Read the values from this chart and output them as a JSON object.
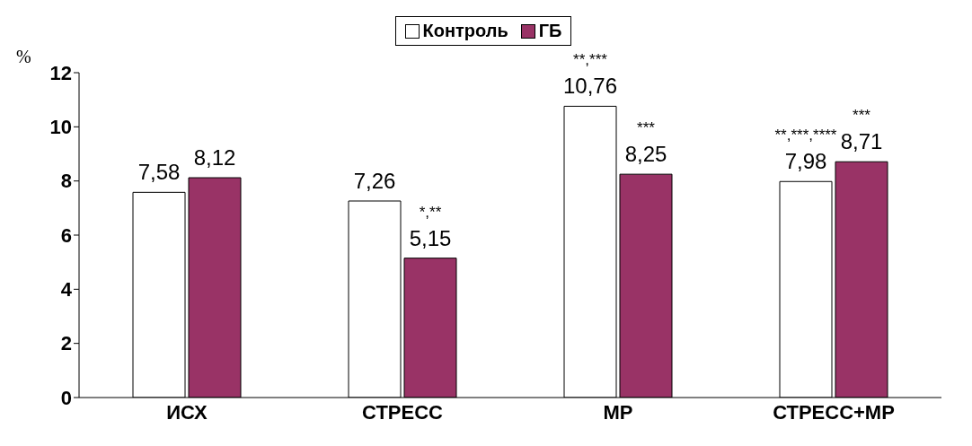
{
  "chart_data": {
    "type": "bar",
    "ylabel": "%",
    "categories": [
      "ИСХ",
      "СТРЕСС",
      "МР",
      "СТРЕСС+МР"
    ],
    "series": [
      {
        "name": "Контроль",
        "color": "#ffffff",
        "values": [
          7.58,
          7.26,
          10.76,
          7.98
        ],
        "value_labels": [
          "7,58",
          "7,26",
          "10,76",
          "7,98"
        ]
      },
      {
        "name": "ГБ",
        "color": "#993366",
        "values": [
          8.12,
          5.15,
          8.25,
          8.71
        ],
        "value_labels": [
          "8,12",
          "5,15",
          "8,25",
          "8,71"
        ]
      }
    ],
    "ylim": [
      0,
      12
    ],
    "yticks": [
      0,
      2,
      4,
      6,
      8,
      10,
      12
    ],
    "grid": false,
    "legend": "top",
    "annotations": [
      {
        "text": "*,**",
        "x": "СТРЕСС",
        "y": 5.15
      },
      {
        "text": "**,***",
        "x": "МР",
        "y": 10.76
      },
      {
        "text": "***",
        "x": "МР",
        "y": 8.25
      },
      {
        "text": "**,***,****",
        "x": "СТРЕСС+МР",
        "y": 7.98
      },
      {
        "text": "***",
        "x": "СТРЕСС+МР",
        "y": 8.71
      }
    ]
  }
}
